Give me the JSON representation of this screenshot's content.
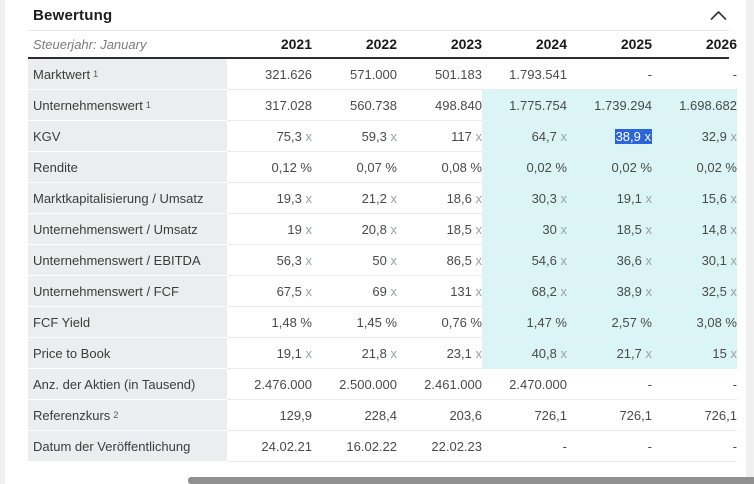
{
  "panel": {
    "title": "Bewertung",
    "collapse_icon": "chevron-up"
  },
  "table": {
    "header": {
      "label": "Steuerjahr: January",
      "years": [
        "2021",
        "2022",
        "2023",
        "2024",
        "2025",
        "2026"
      ]
    },
    "rows": [
      {
        "label": "Marktwert",
        "sup": "1",
        "estimate": false,
        "values": [
          "321.626",
          "571.000",
          "501.183",
          "1.793.541",
          "-",
          "-"
        ]
      },
      {
        "label": "Unternehmenswert",
        "sup": "1",
        "estimate": true,
        "values": [
          "317.028",
          "560.738",
          "498.840",
          "1.775.754",
          "1.739.294",
          "1.698.682"
        ]
      },
      {
        "label": "KGV",
        "estimate": true,
        "values": [
          "75,3 x",
          "59,3 x",
          "117 x",
          "64,7 x",
          "38,9 x",
          "32,9 x"
        ]
      },
      {
        "label": "Rendite",
        "estimate": true,
        "values": [
          "0,12 %",
          "0,07 %",
          "0,08 %",
          "0,02 %",
          "0,02 %",
          "0,02 %"
        ]
      },
      {
        "label": "Marktkapitalisierung / Umsatz",
        "estimate": true,
        "values": [
          "19,3 x",
          "21,2 x",
          "18,6 x",
          "30,3 x",
          "19,1 x",
          "15,6 x"
        ]
      },
      {
        "label": "Unternehmenswert / Umsatz",
        "estimate": true,
        "values": [
          "19 x",
          "20,8 x",
          "18,5 x",
          "30 x",
          "18,5 x",
          "14,8 x"
        ]
      },
      {
        "label": "Unternehmenswert / EBITDA",
        "estimate": true,
        "values": [
          "56,3 x",
          "50 x",
          "86,5 x",
          "54,6 x",
          "36,6 x",
          "30,1 x"
        ]
      },
      {
        "label": "Unternehmenswert / FCF",
        "estimate": true,
        "values": [
          "67,5 x",
          "69 x",
          "131 x",
          "68,2 x",
          "38,9 x",
          "32,5 x"
        ]
      },
      {
        "label": "FCF Yield",
        "estimate": true,
        "values": [
          "1,48 %",
          "1,45 %",
          "0,76 %",
          "1,47 %",
          "2,57 %",
          "3,08 %"
        ]
      },
      {
        "label": "Price to Book",
        "estimate": true,
        "values": [
          "19,1 x",
          "21,8 x",
          "23,1 x",
          "40,8 x",
          "21,7 x",
          "15 x"
        ]
      },
      {
        "label": "Anz. der Aktien (in Tausend)",
        "estimate": false,
        "values": [
          "2.476.000",
          "2.500.000",
          "2.461.000",
          "2.470.000",
          "-",
          "-"
        ]
      },
      {
        "label": "Referenzkurs",
        "sup": "2",
        "estimate": false,
        "values": [
          "129,9",
          "228,4",
          "203,6",
          "726,1",
          "726,1",
          "726,1"
        ]
      },
      {
        "label": "Datum der Veröffentlichung",
        "estimate": false,
        "values": [
          "24.02.21",
          "16.02.22",
          "22.02.23",
          "-",
          "-",
          "-"
        ]
      }
    ],
    "selection": {
      "row": 2,
      "col": 4,
      "value": "38,9 x"
    }
  },
  "colors": {
    "estimate_bg": "#dbf5f7",
    "selection_bg": "#2a66d9",
    "label_bg": "#ecedf1",
    "header_border": "#2e2e2e",
    "scrollbar_thumb": "#909090"
  }
}
